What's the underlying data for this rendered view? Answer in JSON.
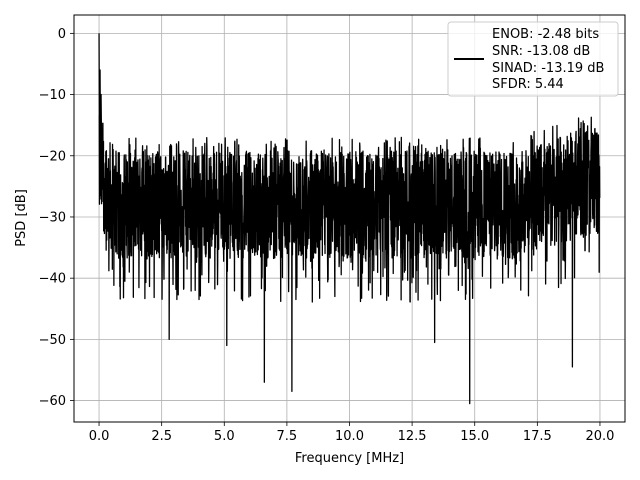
{
  "chart_data": {
    "type": "line",
    "xlabel": "Frequency [MHz]",
    "ylabel": "PSD [dB]",
    "xlim": [
      -1.0,
      21.0
    ],
    "ylim": [
      -63.5,
      3.0
    ],
    "xticks": [
      0.0,
      2.5,
      5.0,
      7.5,
      10.0,
      12.5,
      15.0,
      17.5,
      20.0
    ],
    "xtick_labels": [
      "0.0",
      "2.5",
      "5.0",
      "7.5",
      "10.0",
      "12.5",
      "15.0",
      "17.5",
      "20.0"
    ],
    "yticks": [
      0,
      -10,
      -20,
      -30,
      -40,
      -50,
      -60
    ],
    "ytick_labels": [
      "0",
      "−10",
      "−20",
      "−30",
      "−40",
      "−50",
      "−60"
    ],
    "grid": true,
    "legend_position": "top-right",
    "series": [
      {
        "color": "#000000",
        "x_range": [
          0.0,
          20.0
        ],
        "peak": {
          "x": 0.0,
          "y": 0.0
        },
        "notable_minima": [
          {
            "x": 2.8,
            "y": -50.0
          },
          {
            "x": 5.1,
            "y": -51.0
          },
          {
            "x": 6.6,
            "y": -57.0
          },
          {
            "x": 7.7,
            "y": -58.5
          },
          {
            "x": 13.4,
            "y": -50.5
          },
          {
            "x": 14.8,
            "y": -60.5
          },
          {
            "x": 18.9,
            "y": -54.5
          }
        ],
        "noise_floor_mean": -28.0,
        "noise_floor_upper": -20.0,
        "noise_floor_lower": -36.0
      }
    ],
    "legend": {
      "lines": [
        "ENOB: -2.48 bits",
        "SNR: -13.08 dB",
        "SINAD: -13.19 dB",
        "SFDR: 5.44"
      ]
    }
  }
}
